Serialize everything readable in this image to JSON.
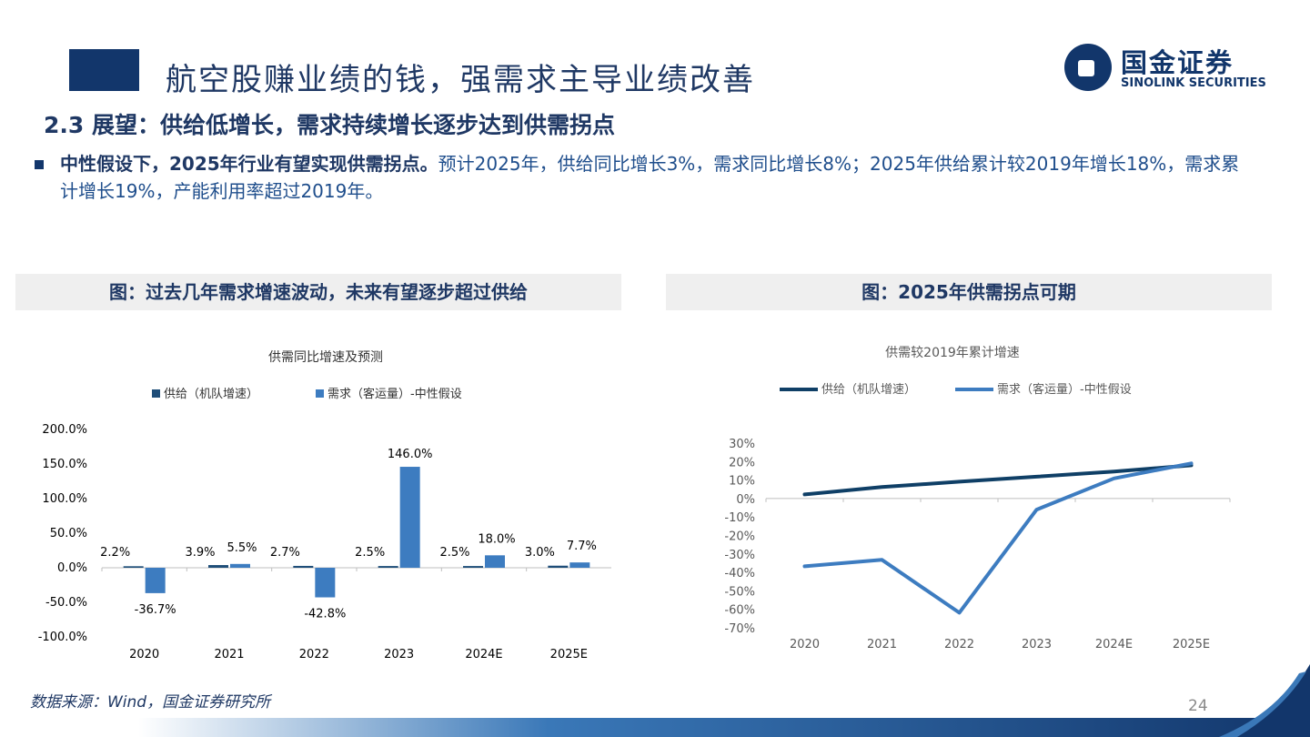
{
  "header": {
    "title": "航空股赚业绩的钱，强需求主导业绩改善",
    "logo_cn": "国金证券",
    "logo_en": "SINOLINK SECURITIES"
  },
  "section": {
    "subtitle": "2.3 展望：供给低增长，需求持续增长逐步达到供需拐点",
    "bullet_bold": "中性假设下，2025年行业有望实现供需拐点。",
    "bullet_text": "预计2025年，供给同比增长3%，需求同比增长8%；2025年供给累计较2019年增长18%，需求累计增长19%，产能利用率超过2019年。"
  },
  "panels": {
    "left_heading": "图：过去几年需求增速波动，未来有望逐步超过供给",
    "right_heading": "图：2025年供需拐点可期"
  },
  "chart_data": [
    {
      "type": "bar",
      "title": "供需同比增速及预测",
      "categories": [
        "2020",
        "2021",
        "2022",
        "2023",
        "2024E",
        "2025E"
      ],
      "series": [
        {
          "name": "供给（机队增速）",
          "values": [
            2.2,
            3.9,
            2.7,
            2.5,
            2.5,
            3.0
          ],
          "labels": [
            "2.2%",
            "3.9%",
            "2.7%",
            "2.5%",
            "2.5%",
            "3.0%"
          ]
        },
        {
          "name": "需求（客运量）-中性假设",
          "values": [
            -36.7,
            5.5,
            -42.8,
            146.0,
            18.0,
            7.7
          ],
          "labels": [
            "-36.7%",
            "5.5%",
            "-42.8%",
            "146.0%",
            "18.0%",
            "7.7%"
          ]
        }
      ],
      "ylim": [
        -100,
        200
      ],
      "yticks": [
        200,
        150,
        100,
        50,
        0,
        -50,
        -100
      ],
      "ytick_labels": [
        "200.0%",
        "150.0%",
        "100.0%",
        "50.0%",
        "0.0%",
        "-50.0%",
        "-100.0%"
      ],
      "colors": [
        "#1f4e79",
        "#3d7cc0"
      ],
      "legend": "top"
    },
    {
      "type": "line",
      "title": "供需较2019年累计增速",
      "categories": [
        "2020",
        "2021",
        "2022",
        "2023",
        "2024E",
        "2025E"
      ],
      "series": [
        {
          "name": "供给（机队增速）",
          "values": [
            2.2,
            6.2,
            9.1,
            11.8,
            14.6,
            18.0
          ]
        },
        {
          "name": "需求（客运量）-中性假设",
          "values": [
            -36.7,
            -33.2,
            -61.8,
            -6.0,
            10.9,
            19.0
          ]
        }
      ],
      "ylim": [
        -70,
        30
      ],
      "yticks": [
        30,
        20,
        10,
        0,
        -10,
        -20,
        -30,
        -40,
        -50,
        -60,
        -70
      ],
      "ytick_labels": [
        "30%",
        "20%",
        "10%",
        "0%",
        "-10%",
        "-20%",
        "-30%",
        "-40%",
        "-50%",
        "-60%",
        "-70%"
      ],
      "colors": [
        "#0f3f66",
        "#3d7cc0"
      ],
      "legend": "top"
    }
  ],
  "footer": {
    "source": "数据来源：Wind，国金证券研究所",
    "page": "24"
  }
}
